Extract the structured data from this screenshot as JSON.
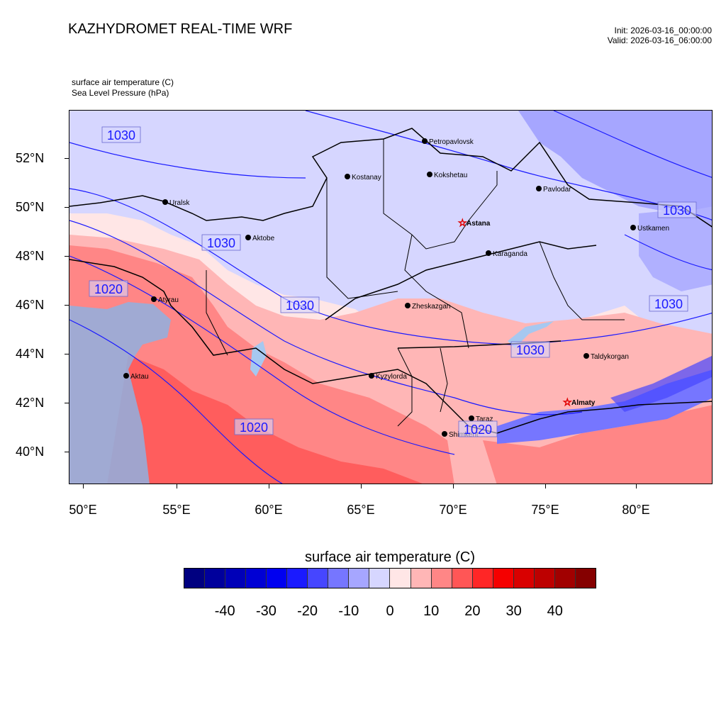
{
  "header": {
    "title": "KAZHYDROMET REAL-TIME WRF",
    "init": "Init: 2026-03-16_00:00:00",
    "valid": "Valid: 2026-03-16_06:00:00"
  },
  "fields": {
    "temperature": "surface air temperature   (C)",
    "pressure": "Sea Level Pressure   (hPa)"
  },
  "axes": {
    "lat_labels": [
      "52°N",
      "50°N",
      "48°N",
      "46°N",
      "44°N",
      "42°N",
      "40°N"
    ],
    "lon_labels": [
      "50°E",
      "55°E",
      "60°E",
      "65°E",
      "70°E",
      "75°E",
      "80°E"
    ]
  },
  "map": {
    "cities": [
      {
        "name": "Petropavlovsk",
        "capital": false
      },
      {
        "name": "Kostanay",
        "capital": false
      },
      {
        "name": "Kokshetau",
        "capital": false
      },
      {
        "name": "Pavlodar",
        "capital": false
      },
      {
        "name": "Uralsk",
        "capital": false
      },
      {
        "name": "Aktobe",
        "capital": false
      },
      {
        "name": "Astana",
        "capital": true
      },
      {
        "name": "Ustkamen",
        "capital": false
      },
      {
        "name": "Karaganda",
        "capital": false
      },
      {
        "name": "Atyrau",
        "capital": false
      },
      {
        "name": "Zheskazgan",
        "capital": false
      },
      {
        "name": "Taldykorgan",
        "capital": false
      },
      {
        "name": "Aktau",
        "capital": false
      },
      {
        "name": "Kyzylorda",
        "capital": false
      },
      {
        "name": "Almaty",
        "capital": true
      },
      {
        "name": "Taraz",
        "capital": false
      },
      {
        "name": "Shimkent",
        "capital": false
      }
    ],
    "isobar_labels": [
      "1030",
      "1030",
      "1020",
      "1030",
      "1030",
      "1030",
      "1030",
      "1020",
      "1020"
    ]
  },
  "colorbar": {
    "title": "surface air temperature  (C)",
    "colors": [
      "#000080",
      "#00009c",
      "#0000b8",
      "#0000d4",
      "#0000f0",
      "#1a1aff",
      "#4646ff",
      "#7676ff",
      "#a6a6ff",
      "#d6d6ff",
      "#ffe6e6",
      "#ffb6b6",
      "#ff8686",
      "#ff5656",
      "#ff2626",
      "#f50000",
      "#d90000",
      "#bd0000",
      "#a10000",
      "#850000"
    ],
    "labels": [
      "-40",
      "-30",
      "-20",
      "-10",
      "0",
      "10",
      "20",
      "30",
      "40"
    ]
  }
}
